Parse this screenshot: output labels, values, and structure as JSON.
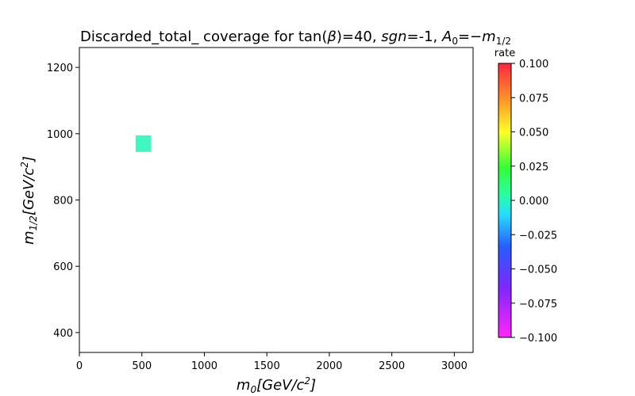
{
  "chart_data": {
    "type": "heatmap",
    "title": "Discarded_total_ coverage for tan(β)=40, sgn=-1, A₀=−m₁/₂",
    "xlabel": "m₀[GeV/c²]",
    "ylabel": "m₁/₂[GeV/c²]",
    "xlim": [
      0,
      3150
    ],
    "ylim": [
      340,
      1260
    ],
    "xticks": [
      0,
      500,
      1000,
      1500,
      2000,
      2500,
      3000
    ],
    "yticks": [
      400,
      600,
      800,
      1000,
      1200
    ],
    "cells": [
      {
        "x0": 450,
        "x1": 575,
        "y0": 945,
        "y1": 995,
        "value": 0.0
      }
    ],
    "colorbar": {
      "label": "rate",
      "vmin": -0.1,
      "vmax": 0.1,
      "ticks": [
        "0.100",
        "0.075",
        "0.050",
        "0.025",
        "0.000",
        "−0.025",
        "−0.050",
        "−0.075",
        "−0.100"
      ],
      "tick_values": [
        0.1,
        0.075,
        0.05,
        0.025,
        0.0,
        -0.025,
        -0.05,
        -0.075,
        -0.1
      ],
      "colormap": "gist_rainbow"
    },
    "grid": false
  }
}
